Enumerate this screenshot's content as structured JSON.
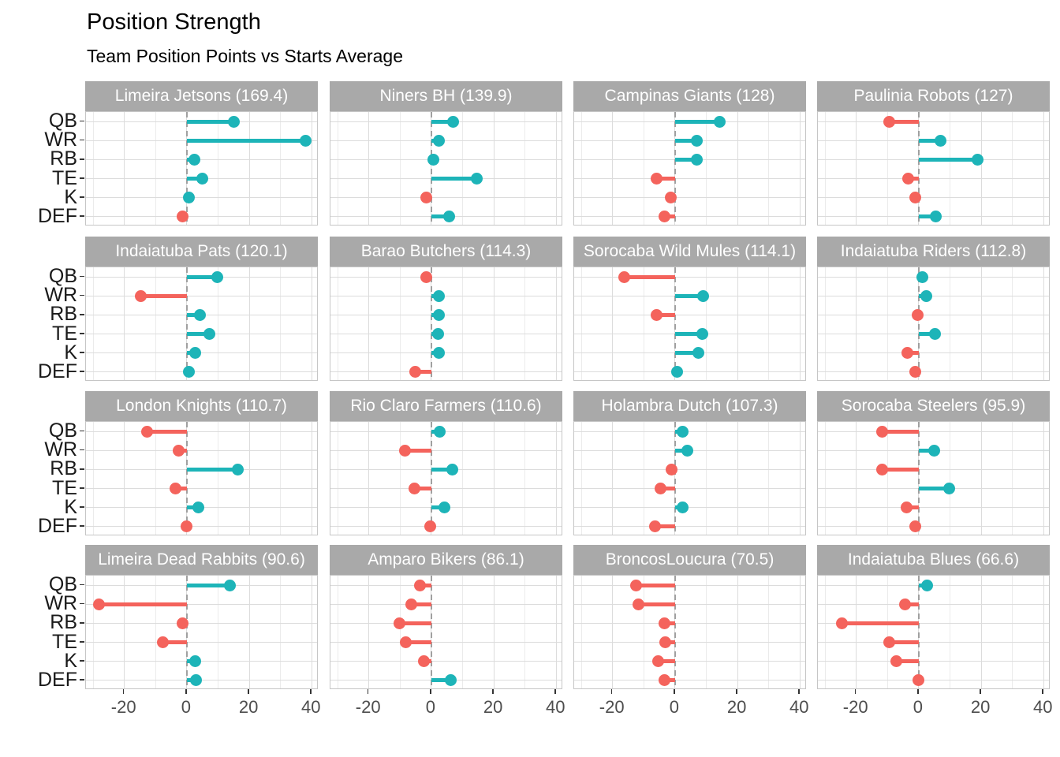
{
  "title": "Position Strength",
  "subtitle": "Team Position Points vs Starts Average",
  "colors": {
    "positive": "#1db4b8",
    "negative": "#f4635c",
    "strip_bg": "#a9a9a9",
    "strip_text": "#ffffff",
    "panel_border": "#c6c6c6",
    "grid_major": "#dcdcdc",
    "grid_minor": "#ebebeb",
    "zero_line": "#a0a0a0",
    "axis_text": "#4d4d4d",
    "y_label_text": "#1a1a1a"
  },
  "chart_data": {
    "type": "lollipop",
    "orientation": "horizontal",
    "title": "Position Strength",
    "subtitle": "Team Position Points vs Starts Average",
    "categories": [
      "QB",
      "WR",
      "RB",
      "TE",
      "K",
      "DEF"
    ],
    "x_ticks": [
      -20,
      0,
      20,
      40
    ],
    "x_minor_ticks": [
      -30,
      -10,
      10,
      30
    ],
    "xlim": [
      -32.3,
      42.2
    ],
    "grid": true,
    "legend": "none",
    "color_rule": "positive values teal, negative values red",
    "facets": [
      {
        "team": "Limeira Jetsons",
        "total": "169.4",
        "label": "Limeira Jetsons (169.4)",
        "values": [
          15.0,
          38.0,
          2.5,
          5.0,
          0.7,
          -1.3
        ]
      },
      {
        "team": "Niners BH",
        "total": "139.9",
        "label": "Niners BH (139.9)",
        "values": [
          7.0,
          2.5,
          0.7,
          14.5,
          -1.7,
          5.8
        ]
      },
      {
        "team": "Campinas Giants",
        "total": "128",
        "label": "Campinas Giants (128)",
        "values": [
          14.2,
          7.0,
          7.0,
          -6.0,
          -1.4,
          -3.5
        ]
      },
      {
        "team": "Paulinia Robots",
        "total": "127",
        "label": "Paulinia Robots (127)",
        "values": [
          -9.5,
          7.0,
          18.8,
          -3.3,
          -1.2,
          5.5
        ]
      },
      {
        "team": "Indaiatuba Pats",
        "total": "120.1",
        "label": "Indaiatuba Pats (120.1)",
        "values": [
          9.8,
          -14.8,
          4.2,
          7.1,
          2.7,
          0.7
        ]
      },
      {
        "team": "Barao Butchers",
        "total": "114.3",
        "label": "Barao Butchers (114.3)",
        "values": [
          -1.7,
          2.4,
          2.4,
          2.2,
          2.4,
          -5.1
        ]
      },
      {
        "team": "Sorocaba Wild Mules",
        "total": "114.1",
        "label": "Sorocaba Wild Mules (114.1)",
        "values": [
          -16.3,
          9.1,
          -6.0,
          8.8,
          7.4,
          0.7
        ]
      },
      {
        "team": "Indaiatuba Riders",
        "total": "112.8",
        "label": "Indaiatuba Riders (112.8)",
        "values": [
          1.2,
          2.3,
          -0.3,
          5.2,
          -3.7,
          -1.2
        ]
      },
      {
        "team": "London Knights",
        "total": "110.7",
        "label": "London Knights (110.7)",
        "values": [
          -12.8,
          -2.6,
          16.4,
          -3.6,
          3.7,
          -0.2
        ]
      },
      {
        "team": "Rio Claro Farmers",
        "total": "110.6",
        "label": "Rio Claro Farmers (110.6)",
        "values": [
          2.6,
          -8.4,
          6.8,
          -5.4,
          4.3,
          -0.4
        ]
      },
      {
        "team": "Holambra Dutch",
        "total": "107.3",
        "label": "Holambra Dutch (107.3)",
        "values": [
          2.5,
          3.9,
          -1.2,
          -4.7,
          2.5,
          -6.4
        ]
      },
      {
        "team": "Sorocaba Steelers",
        "total": "95.9",
        "label": "Sorocaba Steelers (95.9)",
        "values": [
          -11.6,
          5.0,
          -11.6,
          9.8,
          -4.0,
          -1.2
        ]
      },
      {
        "team": "Limeira Dead Rabbits",
        "total": "90.6",
        "label": "Limeira Dead Rabbits (90.6)",
        "values": [
          13.8,
          -28.1,
          -1.4,
          -7.7,
          2.7,
          2.9
        ]
      },
      {
        "team": "Amparo Bikers",
        "total": "86.1",
        "label": "Amparo Bikers (86.1)",
        "values": [
          -3.7,
          -6.4,
          -10.2,
          -8.3,
          -2.5,
          6.2
        ]
      },
      {
        "team": "BroncosLoucura",
        "total": "70.5",
        "label": "BroncosLoucura (70.5)",
        "values": [
          -12.6,
          -11.8,
          -3.3,
          -3.1,
          -5.5,
          -3.3
        ]
      },
      {
        "team": "Indaiatuba Blues",
        "total": "66.6",
        "label": "Indaiatuba Blues (66.6)",
        "values": [
          2.7,
          -4.3,
          -24.5,
          -9.5,
          -7.2,
          -0.2
        ]
      }
    ]
  }
}
